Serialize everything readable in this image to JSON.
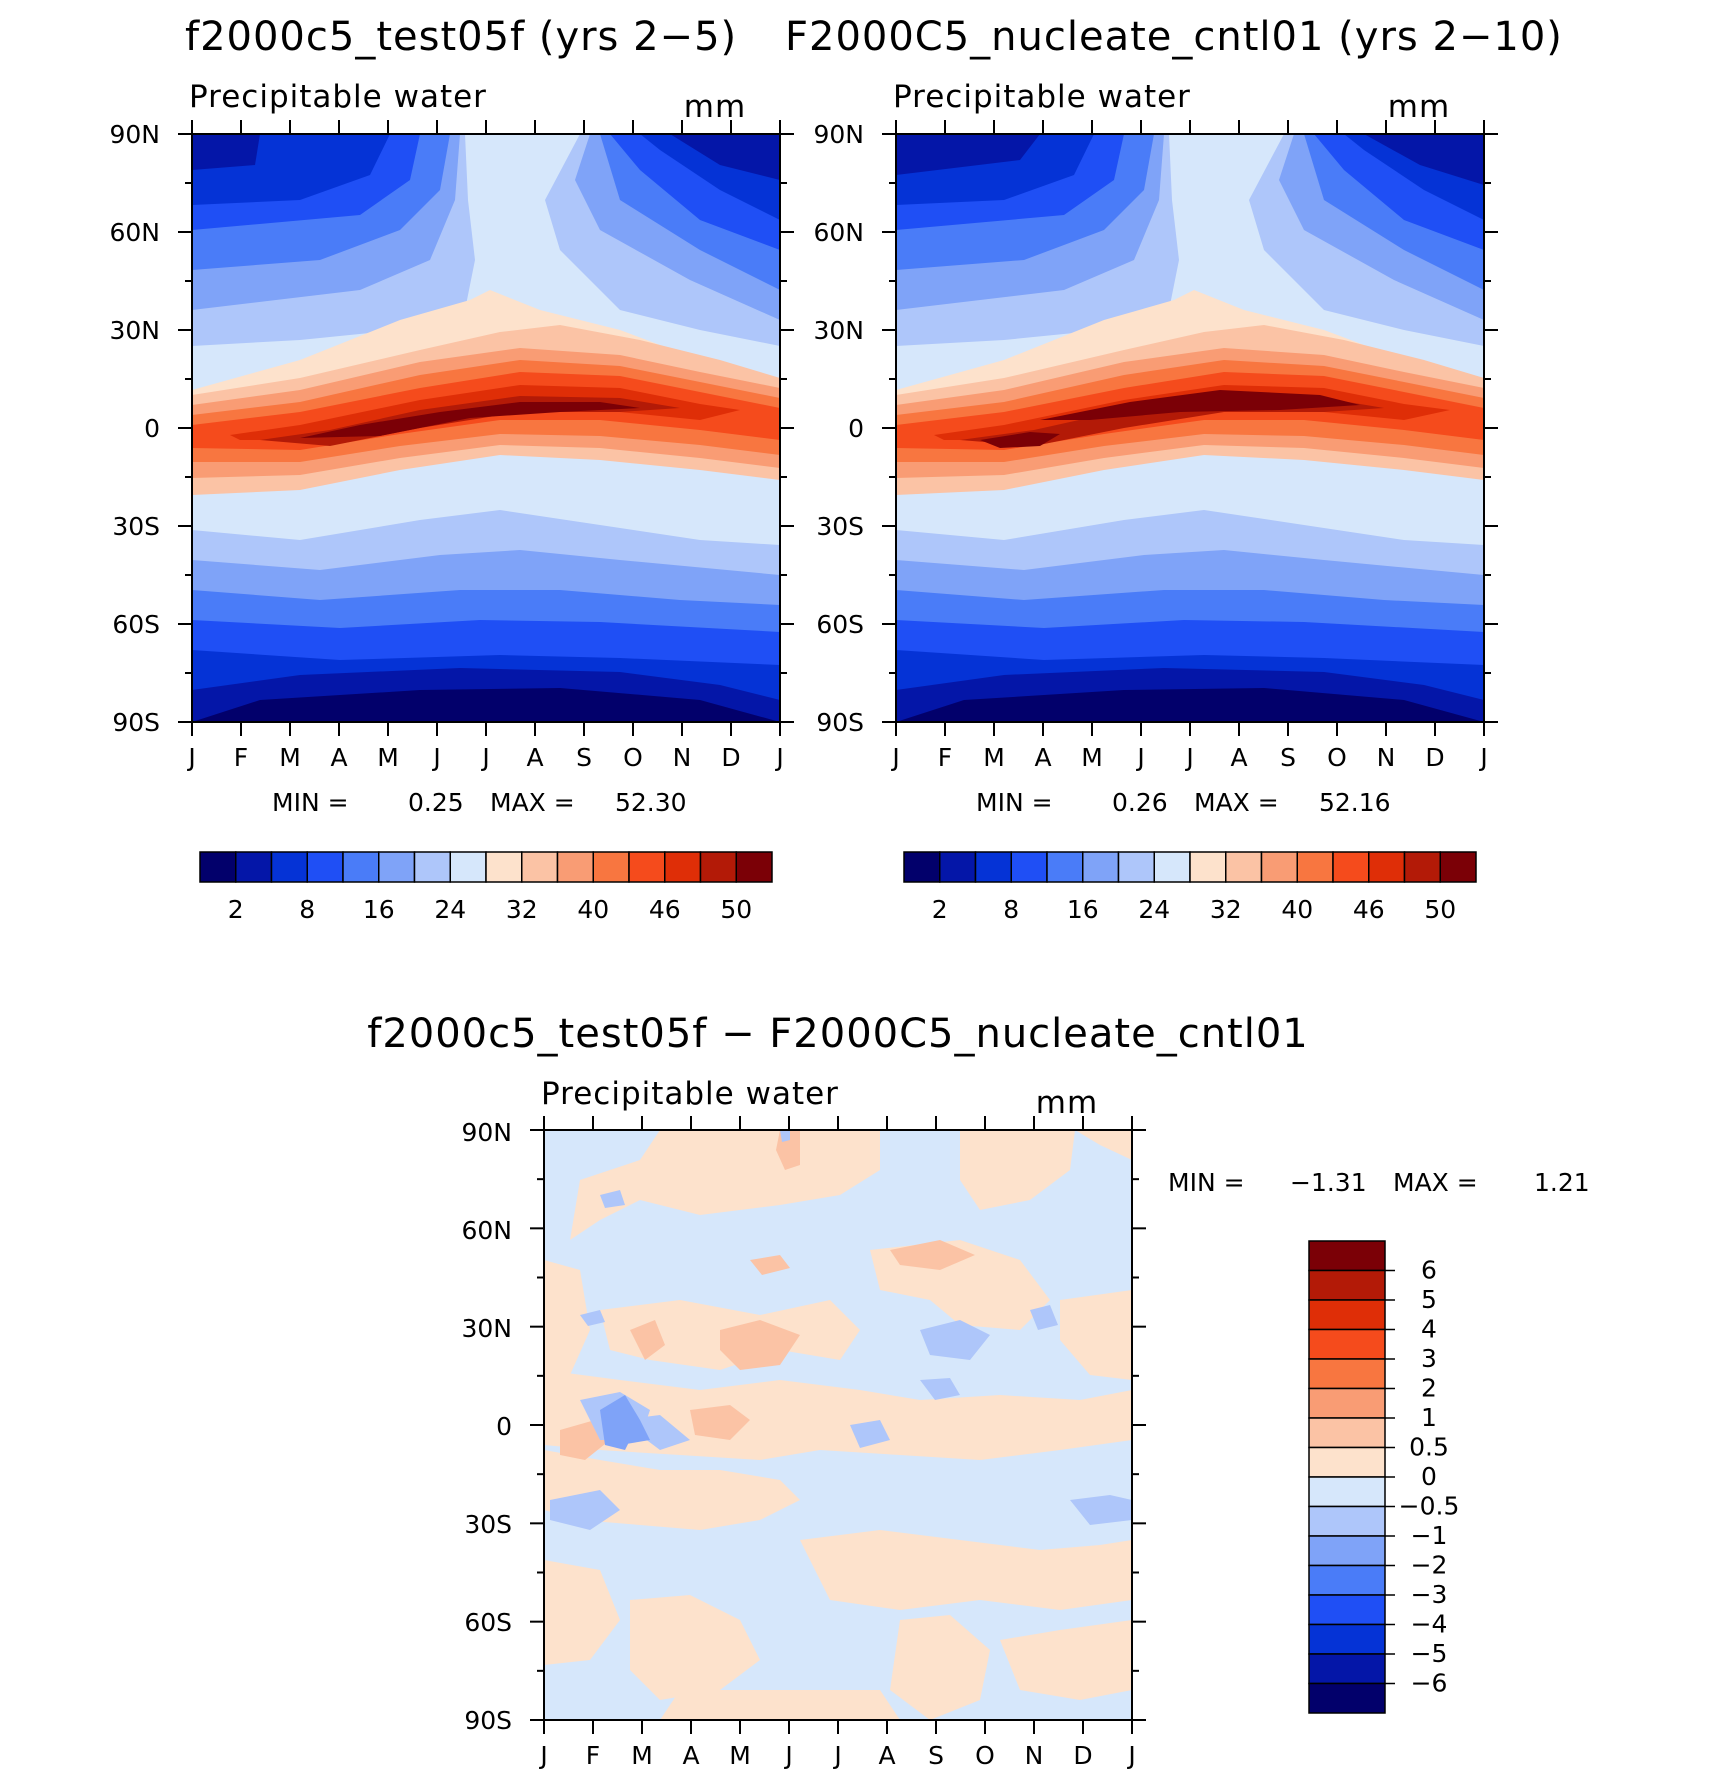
{
  "panels": [
    {
      "title": "f2000c5_test05f (yrs 2−5)",
      "variable": "Precipitable water",
      "units": "mm",
      "min_label": "MIN =",
      "min_value": "0.25",
      "max_label": "MAX =",
      "max_value": "52.30"
    },
    {
      "title": "F2000C5_nucleate_cntl01 (yrs 2−10)",
      "variable": "Precipitable water",
      "units": "mm",
      "min_label": "MIN =",
      "min_value": "0.26",
      "max_label": "MAX =",
      "max_value": "52.16"
    },
    {
      "title": "f2000c5_test05f − F2000C5_nucleate_cntl01",
      "variable": "Precipitable water",
      "units": "mm",
      "min_label": "MIN =",
      "min_value": "−1.31",
      "max_label": "MAX =",
      "max_value": "1.21"
    }
  ],
  "chart_data": [
    {
      "type": "heatmap",
      "title": "f2000c5_test05f (yrs 2−5)",
      "subtitle": "Precipitable water",
      "units": "mm",
      "x_ticks": [
        "J",
        "F",
        "M",
        "A",
        "M",
        "J",
        "J",
        "A",
        "S",
        "O",
        "N",
        "D",
        "J"
      ],
      "y_ticks": [
        "90N",
        "60N",
        "30N",
        "0",
        "30S",
        "60S",
        "90S"
      ],
      "ylim": [
        -90,
        90
      ],
      "min": 0.25,
      "max": 52.3,
      "colorbar": {
        "orientation": "horizontal",
        "labels": [
          "2",
          "8",
          "16",
          "24",
          "32",
          "40",
          "46",
          "50"
        ],
        "colors": [
          "#02006b",
          "#0416a8",
          "#0533d6",
          "#1f4ff5",
          "#4a7cf8",
          "#7fa3f8",
          "#aec6fa",
          "#d6e7fb",
          "#fde2cc",
          "#fbc3a5",
          "#f99c74",
          "#f87640",
          "#f54b1c",
          "#df2e07",
          "#b31a07",
          "#7b0006"
        ]
      }
    },
    {
      "type": "heatmap",
      "title": "F2000C5_nucleate_cntl01 (yrs 2−10)",
      "subtitle": "Precipitable water",
      "units": "mm",
      "x_ticks": [
        "J",
        "F",
        "M",
        "A",
        "M",
        "J",
        "J",
        "A",
        "S",
        "O",
        "N",
        "D",
        "J"
      ],
      "y_ticks": [
        "90N",
        "60N",
        "30N",
        "0",
        "30S",
        "60S",
        "90S"
      ],
      "ylim": [
        -90,
        90
      ],
      "min": 0.26,
      "max": 52.16,
      "colorbar": {
        "orientation": "horizontal",
        "labels": [
          "2",
          "8",
          "16",
          "24",
          "32",
          "40",
          "46",
          "50"
        ],
        "colors": [
          "#02006b",
          "#0416a8",
          "#0533d6",
          "#1f4ff5",
          "#4a7cf8",
          "#7fa3f8",
          "#aec6fa",
          "#d6e7fb",
          "#fde2cc",
          "#fbc3a5",
          "#f99c74",
          "#f87640",
          "#f54b1c",
          "#df2e07",
          "#b31a07",
          "#7b0006"
        ]
      }
    },
    {
      "type": "heatmap",
      "title": "f2000c5_test05f − F2000C5_nucleate_cntl01",
      "subtitle": "Precipitable water",
      "units": "mm",
      "x_ticks": [
        "J",
        "F",
        "M",
        "A",
        "M",
        "J",
        "J",
        "A",
        "S",
        "O",
        "N",
        "D",
        "J"
      ],
      "y_ticks": [
        "90N",
        "60N",
        "30N",
        "0",
        "30S",
        "60S",
        "90S"
      ],
      "ylim": [
        -90,
        90
      ],
      "min": -1.31,
      "max": 1.21,
      "colorbar": {
        "orientation": "vertical",
        "labels": [
          "6",
          "5",
          "4",
          "3",
          "2",
          "1",
          "0.5",
          "0",
          "−0.5",
          "−1",
          "−2",
          "−3",
          "−4",
          "−5",
          "−6"
        ],
        "colors": [
          "#7b0006",
          "#b31a07",
          "#df2e07",
          "#f54b1c",
          "#f87640",
          "#f99c74",
          "#fbc3a5",
          "#fde2cc",
          "#d6e7fb",
          "#aec6fa",
          "#7fa3f8",
          "#4a7cf8",
          "#1f4ff5",
          "#0533d6",
          "#0416a8",
          "#02006b"
        ]
      }
    }
  ]
}
